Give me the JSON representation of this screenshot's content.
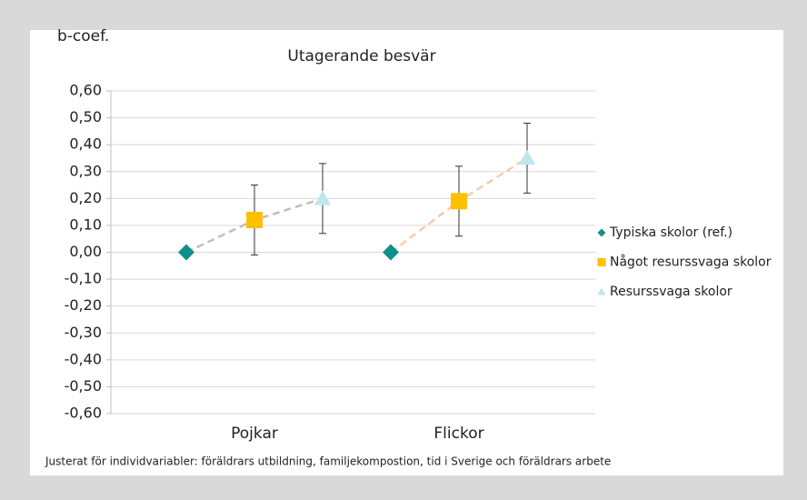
{
  "chart_data": {
    "type": "errorpoint",
    "title": "Utagerande besvär",
    "y_label": "b-coef.",
    "footnote": "Justerat för individvariabler: föräldrars utbildning, familjekompostion, tid i Sverige och föräldrars arbete",
    "categories": [
      "Pojkar",
      "Flickor"
    ],
    "series": [
      {
        "name": "Typiska skolor (ref.)",
        "color": "#138f8a",
        "marker": "diamond",
        "values": [
          0,
          0
        ]
      },
      {
        "name": "Något resurssvaga skolor",
        "color": "#ffc000",
        "marker": "square",
        "values": [
          0.12,
          0.19
        ],
        "errors": [
          0.13,
          0.13
        ]
      },
      {
        "name": "Resurssvaga skolor",
        "color": "#bde7ea",
        "marker": "triangle",
        "values": [
          0.2,
          0.35
        ],
        "errors": [
          0.13,
          0.13
        ]
      }
    ],
    "connector_colors": [
      "#bfbfbf",
      "#f8cbad"
    ],
    "ylim": [
      -0.6,
      0.6
    ],
    "yticks": [
      {
        "value": 0.6,
        "label": "0,60"
      },
      {
        "value": 0.5,
        "label": "0,50"
      },
      {
        "value": 0.4,
        "label": "0,40"
      },
      {
        "value": 0.3,
        "label": "0,30"
      },
      {
        "value": 0.2,
        "label": "0,20"
      },
      {
        "value": 0.1,
        "label": "0,10"
      },
      {
        "value": 0,
        "label": "0,00"
      },
      {
        "value": -0.1,
        "label": "-0,10"
      },
      {
        "value": -0.2,
        "label": "-0,20"
      },
      {
        "value": -0.3,
        "label": "-0,30"
      },
      {
        "value": -0.4,
        "label": "-0,40"
      },
      {
        "value": -0.5,
        "label": "-0,50"
      },
      {
        "value": -0.6,
        "label": "-0,60"
      }
    ],
    "grid": true,
    "legend": "right"
  }
}
